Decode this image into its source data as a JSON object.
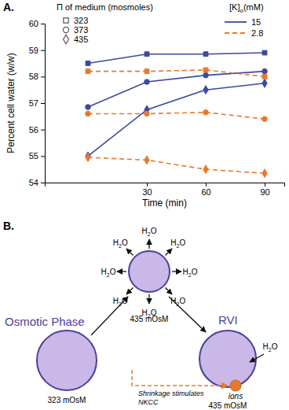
{
  "chart_data": {
    "type": "line",
    "panel_label": "A.",
    "x_label": "Time (min)",
    "y_label": "Percent cell water (w/w)",
    "x": [
      0,
      30,
      60,
      90
    ],
    "xlim": [
      -22,
      100
    ],
    "xticks": [
      30,
      60,
      90
    ],
    "ylim": [
      54,
      60
    ],
    "yticks": [
      54,
      55,
      56,
      57,
      58,
      59,
      60
    ],
    "marker_legend": {
      "title": "Π of medium (mosmoles)",
      "entries": [
        {
          "label": "323",
          "marker": "square"
        },
        {
          "label": "373",
          "marker": "circle"
        },
        {
          "label": "435",
          "marker": "diamond"
        }
      ]
    },
    "line_legend": {
      "title": [
        "[K]",
        "o",
        "(mM)"
      ],
      "entries": [
        {
          "label": "15",
          "color": "#3b4a9c",
          "line_style": "solid"
        },
        {
          "label": "2.8",
          "color": "#e8792b",
          "line_style": "dashed"
        }
      ]
    },
    "series": [
      {
        "color": "#3b4a9c",
        "marker": "square",
        "line_style": "solid",
        "values": [
          58.5,
          58.85,
          58.85,
          58.9
        ]
      },
      {
        "color": "#3b4a9c",
        "marker": "circle",
        "line_style": "solid",
        "values": [
          56.85,
          57.8,
          58.05,
          58.2
        ]
      },
      {
        "color": "#3b4a9c",
        "marker": "diamond",
        "line_style": "solid",
        "values": [
          55.0,
          56.75,
          57.5,
          57.75
        ]
      },
      {
        "color": "#e8792b",
        "marker": "square",
        "line_style": "dashed",
        "values": [
          58.2,
          58.2,
          58.25,
          58.0
        ]
      },
      {
        "color": "#e8792b",
        "marker": "circle",
        "line_style": "dashed",
        "values": [
          56.6,
          56.6,
          56.65,
          56.4
        ]
      },
      {
        "color": "#e8792b",
        "marker": "diamond",
        "line_style": "dashed",
        "values": [
          54.95,
          54.85,
          54.5,
          54.35
        ]
      }
    ]
  },
  "diagram": {
    "panel_label": "B.",
    "water": [
      "H",
      "2",
      "O"
    ],
    "phases": [
      "Osmotic Phase",
      "RVI"
    ],
    "circles": [
      "323 mOsM",
      "435 mOsM",
      "435 mOsM"
    ],
    "ions": "ions",
    "nkcc_note": [
      "Shrinkage stimulates",
      "NKCC"
    ]
  }
}
